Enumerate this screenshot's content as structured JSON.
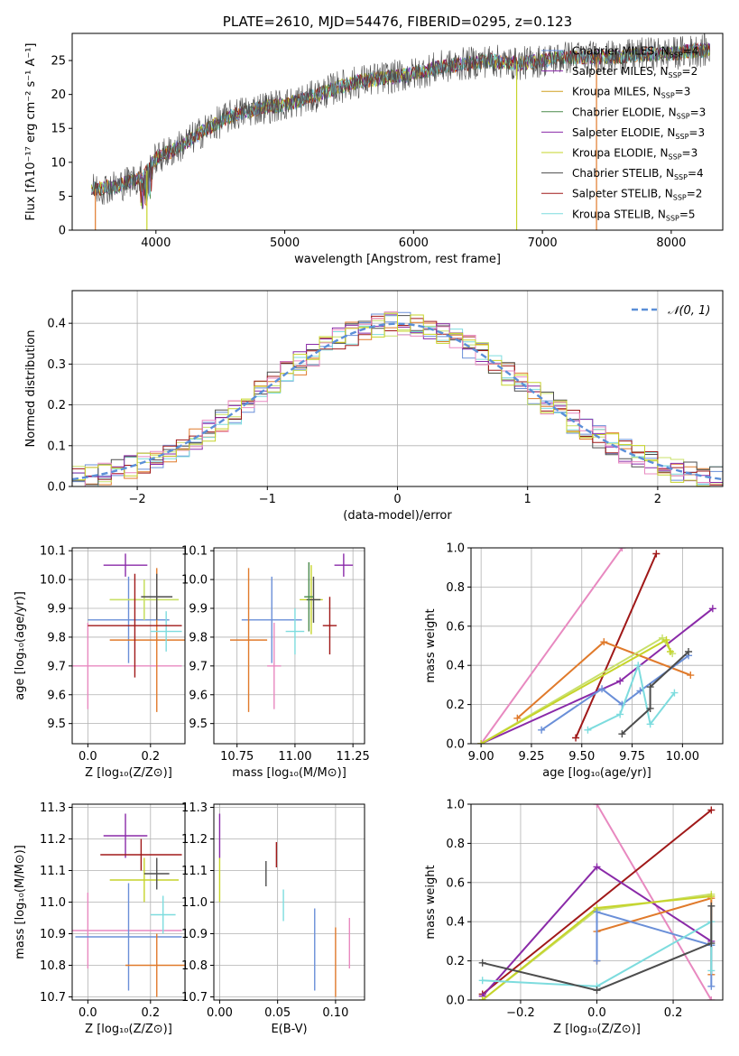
{
  "colors": {
    "series": [
      "#6a8fd8",
      "#e07a2b",
      "#c8e06a",
      "#7ddcde",
      "#4d4d4d",
      "#a01818",
      "#8a2aa8",
      "#e889c0",
      "#c6d42a",
      "#4a8a4a",
      "#d0a020"
    ],
    "gaussian": "#5b8fd8",
    "grid": "#b0b0b0"
  },
  "chart_data": [
    {
      "id": "spectrum",
      "type": "line",
      "title": "PLATE=2610, MJD=54476, FIBERID=0295, z=0.123",
      "xlabel": "wavelength [Angstrom, rest frame]",
      "ylabel": "Flux [fλ10⁻¹⁷ erg cm⁻² s⁻¹ A⁻¹]",
      "xlim": [
        3350,
        8400
      ],
      "ylim": [
        0,
        29
      ],
      "xticks": [
        4000,
        5000,
        6000,
        7000,
        8000
      ],
      "yticks": [
        0,
        5,
        10,
        15,
        20,
        25
      ],
      "grid": false,
      "legend_position": "top-right",
      "legend": [
        {
          "label": "Chabrier MILES, N",
          "sub": "SSP",
          "tail": "=4",
          "color": "#6a8fd8"
        },
        {
          "label": "Salpeter MILES, N",
          "sub": "SSP",
          "tail": "=2",
          "color": "#8a2aa8"
        },
        {
          "label": "Kroupa MILES, N",
          "sub": "SSP",
          "tail": "=3",
          "color": "#d0a020"
        },
        {
          "label": "Chabrier ELODIE, N",
          "sub": "SSP",
          "tail": "=3",
          "color": "#4a8a4a"
        },
        {
          "label": "Salpeter ELODIE, N",
          "sub": "SSP",
          "tail": "=3",
          "color": "#8a2aa8"
        },
        {
          "label": "Kroupa ELODIE, N",
          "sub": "SSP",
          "tail": "=3",
          "color": "#c6d42a"
        },
        {
          "label": "Chabrier STELIB, N",
          "sub": "SSP",
          "tail": "=4",
          "color": "#4d4d4d"
        },
        {
          "label": "Salpeter STELIB, N",
          "sub": "SSP",
          "tail": "=2",
          "color": "#a01818"
        },
        {
          "label": "Kroupa STELIB, N",
          "sub": "SSP",
          "tail": "=5",
          "color": "#7ddcde"
        }
      ],
      "continuum_x": [
        3500,
        3700,
        3900,
        4000,
        4200,
        4400,
        4600,
        4800,
        5000,
        5200,
        5400,
        5600,
        5800,
        6000,
        6200,
        6400,
        6600,
        6800,
        7000,
        7200,
        7400,
        7600,
        7800,
        8000,
        8200,
        8300
      ],
      "continuum_y": [
        6,
        6.5,
        8,
        10.5,
        12.5,
        15,
        17,
        18,
        18.5,
        19.5,
        21,
        22,
        22.5,
        23,
        24,
        24.5,
        25,
        24.5,
        25,
        25.5,
        25.5,
        25.5,
        26,
        26,
        26.5,
        26.5
      ],
      "dropouts_x": [
        3530,
        3930,
        6800,
        7420
      ]
    },
    {
      "id": "residuals",
      "type": "histogram",
      "xlabel": "(data-model)/error",
      "ylabel": "Normed distribution",
      "xlim": [
        -2.5,
        2.5
      ],
      "ylim": [
        0,
        0.48
      ],
      "xticks": [
        -2,
        -1,
        0,
        1,
        2
      ],
      "yticks": [
        0.0,
        0.1,
        0.2,
        0.3,
        0.4
      ],
      "grid": true,
      "legend_position": "top-right",
      "legend": [
        {
          "label": "𝒩(0, 1)",
          "color": "#5b8fd8"
        }
      ],
      "bin_width": 0.1
    },
    {
      "id": "age_vs_z",
      "type": "errorbar",
      "xlabel": "Z [log₁₀(Z/Z⊙)]",
      "ylabel": "age  [log₁₀(age/yr)]",
      "xlim": [
        -0.05,
        0.31
      ],
      "ylim": [
        9.43,
        10.11
      ],
      "xticks": [
        0.0,
        0.2
      ],
      "yticks": [
        9.5,
        9.6,
        9.7,
        9.8,
        9.9,
        10.0,
        10.1
      ],
      "grid": true,
      "points": [
        {
          "x": 0.0,
          "y": 9.7,
          "xerr": 0.3,
          "yerr": 0.15,
          "color": "#e889c0"
        },
        {
          "x": 0.13,
          "y": 9.86,
          "xerr": 0.13,
          "yerr": 0.15,
          "color": "#6a8fd8"
        },
        {
          "x": 0.22,
          "y": 9.79,
          "xerr": 0.15,
          "yerr": 0.25,
          "color": "#e07a2b"
        },
        {
          "x": 0.12,
          "y": 10.05,
          "xerr": 0.07,
          "yerr": 0.04,
          "color": "#8a2aa8"
        },
        {
          "x": 0.18,
          "y": 9.93,
          "xerr": 0.11,
          "yerr": 0.07,
          "color": "#c6d42a"
        },
        {
          "x": 0.18,
          "y": 9.93,
          "xerr": 0.11,
          "yerr": 0.07,
          "color": "#c8e06a"
        },
        {
          "x": 0.22,
          "y": 9.94,
          "xerr": 0.05,
          "yerr": 0.08,
          "color": "#4d4d4d"
        },
        {
          "x": 0.25,
          "y": 9.82,
          "xerr": 0.05,
          "yerr": 0.07,
          "color": "#7ddcde"
        },
        {
          "x": 0.15,
          "y": 9.84,
          "xerr": 0.15,
          "yerr": 0.18,
          "color": "#a01818"
        }
      ]
    },
    {
      "id": "age_vs_mass",
      "type": "errorbar",
      "xlabel": "mass [log₁₀(M/M⊙)]",
      "ylabel": "",
      "xlim": [
        10.65,
        11.3
      ],
      "ylim": [
        9.43,
        10.11
      ],
      "xticks": [
        10.75,
        11.0,
        11.25
      ],
      "yticks": [
        9.5,
        9.6,
        9.7,
        9.8,
        9.9,
        10.0,
        10.1
      ],
      "grid": true,
      "points": [
        {
          "x": 10.91,
          "y": 9.7,
          "xerr": 0.03,
          "yerr": 0.15,
          "color": "#e889c0"
        },
        {
          "x": 10.9,
          "y": 9.86,
          "xerr": 0.13,
          "yerr": 0.15,
          "color": "#6a8fd8"
        },
        {
          "x": 10.8,
          "y": 9.79,
          "xerr": 0.08,
          "yerr": 0.25,
          "color": "#e07a2b"
        },
        {
          "x": 11.21,
          "y": 10.05,
          "xerr": 0.04,
          "yerr": 0.04,
          "color": "#8a2aa8"
        },
        {
          "x": 11.07,
          "y": 9.93,
          "xerr": 0.05,
          "yerr": 0.12,
          "color": "#c6d42a"
        },
        {
          "x": 11.08,
          "y": 9.93,
          "xerr": 0.03,
          "yerr": 0.08,
          "color": "#4d4d4d"
        },
        {
          "x": 11.0,
          "y": 9.82,
          "xerr": 0.04,
          "yerr": 0.08,
          "color": "#7ddcde"
        },
        {
          "x": 11.15,
          "y": 9.84,
          "xerr": 0.03,
          "yerr": 0.1,
          "color": "#a01818"
        },
        {
          "x": 11.06,
          "y": 9.94,
          "xerr": 0.02,
          "yerr": 0.12,
          "color": "#4a8a4a"
        }
      ]
    },
    {
      "id": "massweight_vs_age",
      "type": "line",
      "xlabel": "age  [log₁₀(age/yr)]",
      "ylabel": "mass weight",
      "xlim": [
        8.95,
        10.2
      ],
      "ylim": [
        0,
        1.0
      ],
      "xticks": [
        9.0,
        9.25,
        9.5,
        9.75,
        10.0
      ],
      "yticks": [
        0.0,
        0.2,
        0.4,
        0.6,
        0.8,
        1.0
      ],
      "grid": true,
      "series": [
        {
          "color": "#e889c0",
          "x": [
            9.0,
            9.7
          ],
          "y": [
            0.0,
            1.0
          ]
        },
        {
          "color": "#a01818",
          "x": [
            9.47,
            9.87
          ],
          "y": [
            0.03,
            0.97
          ]
        },
        {
          "color": "#8a2aa8",
          "x": [
            9.0,
            9.69,
            10.15
          ],
          "y": [
            0.0,
            0.32,
            0.69
          ]
        },
        {
          "color": "#e07a2b",
          "x": [
            9.18,
            9.61,
            10.04
          ],
          "y": [
            0.13,
            0.52,
            0.35
          ]
        },
        {
          "color": "#c8e06a",
          "x": [
            9.0,
            9.9,
            9.95
          ],
          "y": [
            0.0,
            0.54,
            0.46
          ]
        },
        {
          "color": "#c6d42a",
          "x": [
            9.0,
            9.92,
            9.94
          ],
          "y": [
            0.0,
            0.53,
            0.47
          ]
        },
        {
          "color": "#6a8fd8",
          "x": [
            9.3,
            9.6,
            9.7,
            9.79,
            10.03
          ],
          "y": [
            0.07,
            0.28,
            0.2,
            0.27,
            0.45
          ]
        },
        {
          "color": "#7ddcde",
          "x": [
            9.53,
            9.69,
            9.78,
            9.84,
            9.96
          ],
          "y": [
            0.07,
            0.15,
            0.4,
            0.1,
            0.26
          ]
        },
        {
          "color": "#4d4d4d",
          "x": [
            9.7,
            9.84,
            9.84,
            10.03
          ],
          "y": [
            0.05,
            0.18,
            0.29,
            0.47
          ]
        }
      ]
    },
    {
      "id": "mass_vs_z",
      "type": "errorbar",
      "xlabel": "Z [log₁₀(Z/Z⊙)]",
      "ylabel": "mass [log₁₀(M/M⊙)]",
      "xlim": [
        -0.05,
        0.31
      ],
      "ylim": [
        10.69,
        11.31
      ],
      "xticks": [
        0.0,
        0.2
      ],
      "yticks": [
        10.7,
        10.8,
        10.9,
        11.0,
        11.1,
        11.2,
        11.3
      ],
      "grid": true,
      "points": [
        {
          "x": 0.0,
          "y": 10.91,
          "xerr": 0.3,
          "yerr": 0.12,
          "color": "#e889c0"
        },
        {
          "x": 0.13,
          "y": 10.89,
          "xerr": 0.17,
          "yerr": 0.17,
          "color": "#6a8fd8"
        },
        {
          "x": 0.22,
          "y": 10.8,
          "xerr": 0.1,
          "yerr": 0.1,
          "color": "#e07a2b"
        },
        {
          "x": 0.12,
          "y": 11.21,
          "xerr": 0.07,
          "yerr": 0.07,
          "color": "#8a2aa8"
        },
        {
          "x": 0.18,
          "y": 11.07,
          "xerr": 0.11,
          "yerr": 0.07,
          "color": "#c6d42a"
        },
        {
          "x": 0.22,
          "y": 11.09,
          "xerr": 0.04,
          "yerr": 0.05,
          "color": "#4d4d4d"
        },
        {
          "x": 0.24,
          "y": 10.96,
          "xerr": 0.04,
          "yerr": 0.06,
          "color": "#7ddcde"
        },
        {
          "x": 0.17,
          "y": 11.15,
          "xerr": 0.13,
          "yerr": 0.05,
          "color": "#a01818"
        }
      ]
    },
    {
      "id": "mass_vs_ebv",
      "type": "errorbar",
      "xlabel": "E(B-V)",
      "ylabel": "",
      "xlim": [
        -0.005,
        0.125
      ],
      "ylim": [
        10.69,
        11.31
      ],
      "xticks": [
        0.0,
        0.05,
        0.1
      ],
      "yticks": [
        10.7,
        10.8,
        10.9,
        11.0,
        11.1,
        11.2,
        11.3
      ],
      "grid": true,
      "points": [
        {
          "x": 0.0,
          "y": 11.21,
          "xerr": 0.0,
          "yerr": 0.07,
          "color": "#8a2aa8"
        },
        {
          "x": 0.0,
          "y": 11.07,
          "xerr": 0.0,
          "yerr": 0.07,
          "color": "#c6d42a"
        },
        {
          "x": 0.04,
          "y": 11.09,
          "xerr": 0.0,
          "yerr": 0.04,
          "color": "#4d4d4d"
        },
        {
          "x": 0.049,
          "y": 11.15,
          "xerr": 0.0,
          "yerr": 0.04,
          "color": "#a01818"
        },
        {
          "x": 0.055,
          "y": 10.99,
          "xerr": 0.0,
          "yerr": 0.05,
          "color": "#7ddcde"
        },
        {
          "x": 0.082,
          "y": 10.85,
          "xerr": 0.0,
          "yerr": 0.13,
          "color": "#6a8fd8"
        },
        {
          "x": 0.1,
          "y": 10.81,
          "xerr": 0.0,
          "yerr": 0.11,
          "color": "#e07a2b"
        },
        {
          "x": 0.112,
          "y": 10.87,
          "xerr": 0.0,
          "yerr": 0.08,
          "color": "#e889c0"
        }
      ]
    },
    {
      "id": "massweight_vs_z",
      "type": "line",
      "xlabel": "Z [log₁₀(Z/Z⊙)]",
      "ylabel": "mass weight",
      "xlim": [
        -0.33,
        0.33
      ],
      "ylim": [
        0,
        1.0
      ],
      "xticks": [
        -0.2,
        0.0,
        0.2
      ],
      "yticks": [
        0.0,
        0.2,
        0.4,
        0.6,
        0.8,
        1.0
      ],
      "grid": true,
      "series": [
        {
          "color": "#e889c0",
          "x": [
            0.0,
            0.3
          ],
          "y": [
            1.0,
            0.0
          ]
        },
        {
          "color": "#a01818",
          "x": [
            -0.3,
            0.3
          ],
          "y": [
            0.03,
            0.97
          ]
        },
        {
          "color": "#8a2aa8",
          "x": [
            -0.3,
            0.0,
            0.3
          ],
          "y": [
            0.02,
            0.68,
            0.3
          ]
        },
        {
          "color": "#e07a2b",
          "x": [
            0.0,
            0.0,
            0.3,
            0.3
          ],
          "y": [
            0.2,
            0.35,
            0.52,
            0.13
          ]
        },
        {
          "color": "#c8e06a",
          "x": [
            -0.3,
            0.0,
            0.3
          ],
          "y": [
            0.0,
            0.46,
            0.54
          ]
        },
        {
          "color": "#c6d42a",
          "x": [
            -0.3,
            0.0,
            0.3
          ],
          "y": [
            0.0,
            0.47,
            0.53
          ]
        },
        {
          "color": "#6a8fd8",
          "x": [
            0.0,
            0.0,
            0.3,
            0.3
          ],
          "y": [
            0.2,
            0.45,
            0.28,
            0.07
          ]
        },
        {
          "color": "#7ddcde",
          "x": [
            -0.3,
            0.0,
            0.3,
            0.3
          ],
          "y": [
            0.1,
            0.07,
            0.4,
            0.15
          ]
        },
        {
          "color": "#4d4d4d",
          "x": [
            -0.3,
            0.0,
            0.3,
            0.3
          ],
          "y": [
            0.19,
            0.05,
            0.29,
            0.48
          ]
        }
      ]
    }
  ]
}
